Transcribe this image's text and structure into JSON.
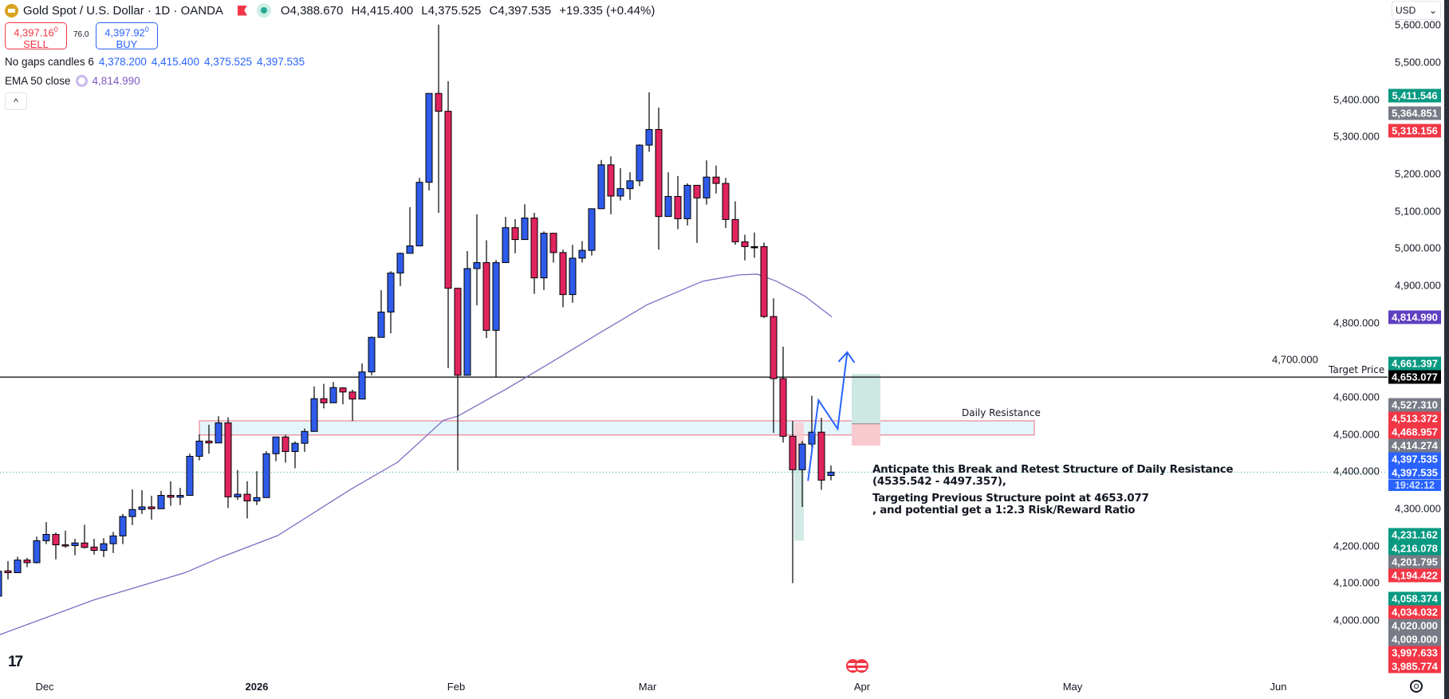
{
  "header": {
    "title": "Gold Spot / U.S. Dollar · 1D · OANDA",
    "ohlc": [
      {
        "k": "O",
        "v": "4,388.670"
      },
      {
        "k": "H",
        "v": "4,415.400"
      },
      {
        "k": "L",
        "v": "4,375.525"
      },
      {
        "k": "C",
        "v": "4,397.535"
      }
    ],
    "change": "+19.335 (+0.44%)"
  },
  "trade": {
    "sell_price": "4,397.16",
    "sell_sup": "0",
    "sell_label": "SELL",
    "spread": "76.0",
    "buy_price": "4,397.92",
    "buy_sup": "0",
    "buy_label": "BUY"
  },
  "indicators": {
    "no_gaps_label": "No gaps candles 6",
    "no_gaps_values": [
      "4,378.200",
      "4,415.400",
      "4,375.525",
      "4,397.535"
    ],
    "ema_label": "EMA 50 close",
    "ema_value": "4,814.990",
    "collapse": "^"
  },
  "currency": "USD",
  "colors": {
    "up": "#2f5bea",
    "down": "#e0245e",
    "ema": "#7e6cc4",
    "green": "#089981",
    "gray": "#787b86",
    "red": "#f23645",
    "purple": "#5e3fc0",
    "black": "#000000",
    "blue": "#2962ff"
  },
  "chart_data": {
    "type": "candlestick",
    "title": "Gold Spot / U.S. Dollar · 1D · OANDA",
    "ylim": [
      3960,
      5660
    ],
    "candles_ohlc": [
      [
        4064,
        4135,
        4050,
        4131
      ],
      [
        4132,
        4158,
        4109,
        4127
      ],
      [
        4127,
        4170,
        4127,
        4161
      ],
      [
        4161,
        4167,
        4142,
        4154
      ],
      [
        4154,
        4224,
        4152,
        4213
      ],
      [
        4213,
        4263,
        4204,
        4230
      ],
      [
        4230,
        4235,
        4163,
        4202
      ],
      [
        4202,
        4240,
        4194,
        4201
      ],
      [
        4200,
        4218,
        4174,
        4207
      ],
      [
        4207,
        4256,
        4192,
        4195
      ],
      [
        4196,
        4218,
        4176,
        4187
      ],
      [
        4187,
        4220,
        4169,
        4205
      ],
      [
        4205,
        4237,
        4180,
        4226
      ],
      [
        4226,
        4285,
        4204,
        4278
      ],
      [
        4278,
        4351,
        4255,
        4297
      ],
      [
        4297,
        4349,
        4285,
        4304
      ],
      [
        4304,
        4334,
        4270,
        4299
      ],
      [
        4299,
        4347,
        4299,
        4335
      ],
      [
        4335,
        4373,
        4307,
        4330
      ],
      [
        4330,
        4355,
        4309,
        4335
      ],
      [
        4335,
        4447,
        4335,
        4440
      ],
      [
        4440,
        4499,
        4429,
        4481
      ],
      [
        4481,
        4525,
        4447,
        4476
      ],
      [
        4476,
        4548,
        4476,
        4530
      ],
      [
        4530,
        4545,
        4301,
        4331
      ],
      [
        4331,
        4403,
        4323,
        4338
      ],
      [
        4338,
        4373,
        4273,
        4320
      ],
      [
        4320,
        4400,
        4309,
        4329
      ],
      [
        4329,
        4454,
        4329,
        4447
      ],
      [
        4447,
        4492,
        4427,
        4492
      ],
      [
        4492,
        4498,
        4423,
        4453
      ],
      [
        4453,
        4480,
        4408,
        4475
      ],
      [
        4475,
        4515,
        4452,
        4507
      ],
      [
        4507,
        4628,
        4507,
        4595
      ],
      [
        4595,
        4635,
        4569,
        4584
      ],
      [
        4584,
        4640,
        4584,
        4625
      ],
      [
        4624,
        4626,
        4580,
        4613
      ],
      [
        4613,
        4619,
        4535,
        4594
      ],
      [
        4594,
        4690,
        4594,
        4667
      ],
      [
        4667,
        4762,
        4658,
        4760
      ],
      [
        4760,
        4887,
        4760,
        4828
      ],
      [
        4828,
        4938,
        4771,
        4933
      ],
      [
        4933,
        4988,
        4898,
        4986
      ],
      [
        4986,
        5110,
        4986,
        5006
      ],
      [
        5006,
        5189,
        5006,
        5177
      ],
      [
        5177,
        5416,
        5155,
        5416
      ],
      [
        5416,
        5601,
        5095,
        5368
      ],
      [
        5368,
        5449,
        4677,
        4892
      ],
      [
        4892,
        4892,
        4402,
        4658
      ],
      [
        4658,
        4992,
        4658,
        4945
      ],
      [
        4945,
        5091,
        4846,
        4961
      ],
      [
        4961,
        5021,
        4758,
        4779
      ],
      [
        4779,
        4968,
        4654,
        4961
      ],
      [
        4961,
        5084,
        4961,
        5055
      ],
      [
        5055,
        5078,
        4986,
        5023
      ],
      [
        5023,
        5118,
        5023,
        5081
      ],
      [
        5081,
        5095,
        4877,
        4920
      ],
      [
        4920,
        5045,
        4887,
        5040
      ],
      [
        5040,
        5040,
        4961,
        4988
      ],
      [
        4988,
        4996,
        4841,
        4875
      ],
      [
        4875,
        5009,
        4853,
        4973
      ],
      [
        4973,
        5019,
        4961,
        4994
      ],
      [
        4994,
        5106,
        4980,
        5106
      ],
      [
        5106,
        5237,
        5106,
        5224
      ],
      [
        5224,
        5247,
        5091,
        5140
      ],
      [
        5140,
        5215,
        5128,
        5160
      ],
      [
        5160,
        5204,
        5130,
        5181
      ],
      [
        5181,
        5279,
        5167,
        5277
      ],
      [
        5277,
        5419,
        5259,
        5319
      ],
      [
        5319,
        5378,
        4996,
        5085
      ],
      [
        5085,
        5204,
        5085,
        5139
      ],
      [
        5139,
        5194,
        5051,
        5079
      ],
      [
        5079,
        5174,
        5061,
        5169
      ],
      [
        5169,
        5169,
        5014,
        5135
      ],
      [
        5135,
        5236,
        5117,
        5191
      ],
      [
        5191,
        5222,
        5147,
        5174
      ],
      [
        5174,
        5189,
        5054,
        5077
      ],
      [
        5077,
        5126,
        5009,
        5017
      ],
      [
        5017,
        5036,
        4967,
        5004
      ],
      [
        5004,
        5042,
        4974,
        5004
      ],
      [
        5004,
        5015,
        4812,
        4816
      ],
      [
        4816,
        4865,
        4503,
        4649
      ],
      [
        4649,
        4735,
        4477,
        4494
      ],
      [
        4494,
        4535,
        4099,
        4404
      ],
      [
        4404,
        4481,
        4304,
        4473
      ],
      [
        4473,
        4603,
        4455,
        4505
      ],
      [
        4505,
        4544,
        4350,
        4376
      ],
      [
        4388.67,
        4415.4,
        4375.525,
        4397.535
      ]
    ],
    "ema50": [
      [
        0,
        3959
      ],
      [
        10,
        4054
      ],
      [
        19.5,
        4127
      ],
      [
        23.3,
        4169
      ],
      [
        29.2,
        4227
      ],
      [
        36.8,
        4351
      ],
      [
        41.7,
        4424
      ],
      [
        46.5,
        4537
      ],
      [
        48,
        4548
      ],
      [
        53.2,
        4623
      ],
      [
        58.1,
        4698
      ],
      [
        62.9,
        4773
      ],
      [
        67.8,
        4848
      ],
      [
        73.6,
        4911
      ],
      [
        77.4,
        4928
      ],
      [
        79.3,
        4930
      ],
      [
        81.3,
        4911
      ],
      [
        84.2,
        4872
      ],
      [
        87.1,
        4814.99
      ]
    ],
    "price_ticks": [
      "5,600.000",
      "5,500.000",
      "5,400.000",
      "5,300.000",
      "5,200.000",
      "5,100.000",
      "5,000.000",
      "4,900.000",
      "4,800.000",
      "4,700.000",
      "4,600.000",
      "4,500.000",
      "4,400.000",
      "4,300.000",
      "4,200.000",
      "4,100.000",
      "4,000.000"
    ],
    "price_tick_values": [
      5600,
      5500,
      5400,
      5300,
      5200,
      5100,
      5000,
      4900,
      4800,
      4700,
      4600,
      4500,
      4400,
      4300,
      4200,
      4100,
      4000
    ],
    "time_labels": [
      "Dec",
      "2026",
      "Feb",
      "Mar",
      "Apr",
      "May",
      "Jun"
    ],
    "current_price": 4397.535,
    "target_price": 4653.077,
    "resistance_zone": [
      4497.357,
      4535.542
    ],
    "short_position": {
      "stop": 4531,
      "entry": 4413,
      "target": 4213
    },
    "long_position": {
      "target": 4661.397,
      "entry": 4527.31,
      "stop": 4468.957
    },
    "projection_path": [
      [
        84.6,
        4374
      ],
      [
        85.7,
        4591
      ],
      [
        87.7,
        4514
      ],
      [
        88.7,
        4720
      ]
    ]
  },
  "price_labels": [
    {
      "text": "5,411.546",
      "color": "green"
    },
    {
      "text": "5,364.851",
      "color": "gray"
    },
    {
      "text": "5,318.156",
      "color": "red"
    },
    {
      "text": "4,814.990",
      "color": "purple"
    },
    {
      "text": "4,661.397",
      "color": "green"
    },
    {
      "text": "4,653.077",
      "color": "black"
    },
    {
      "text": "4,527.310",
      "color": "gray"
    },
    {
      "text": "4,513.372",
      "color": "red"
    },
    {
      "text": "4,468.957",
      "color": "red"
    },
    {
      "text": "4,414.274",
      "color": "gray"
    },
    {
      "text": "4,397.535",
      "color": "blue"
    },
    {
      "text": "4,397.535",
      "color": "blue"
    },
    {
      "text": "4,231.162",
      "color": "green"
    },
    {
      "text": "4,216.078",
      "color": "green"
    },
    {
      "text": "4,201.795",
      "color": "gray"
    },
    {
      "text": "4,194.422",
      "color": "red"
    },
    {
      "text": "4,058.374",
      "color": "green"
    },
    {
      "text": "4,034.032",
      "color": "red"
    },
    {
      "text": "4,020.000",
      "color": "gray"
    },
    {
      "text": "4,009.000",
      "color": "gray"
    },
    {
      "text": "3,997.633",
      "color": "red"
    },
    {
      "text": "3,985.774",
      "color": "red"
    }
  ],
  "countdown": "19:42:12",
  "annotations": {
    "daily_resistance": "Daily Resistance",
    "target_price": "Target Price",
    "note_lines": [
      "Anticpate this Break and Retest Structure of Daily Resistance",
      "(4535.542 - 4497.357),",
      "Targeting Previous Structure point at 4653.077",
      ", and potential get a 1:2.3 Risk/Reward Ratio"
    ]
  }
}
